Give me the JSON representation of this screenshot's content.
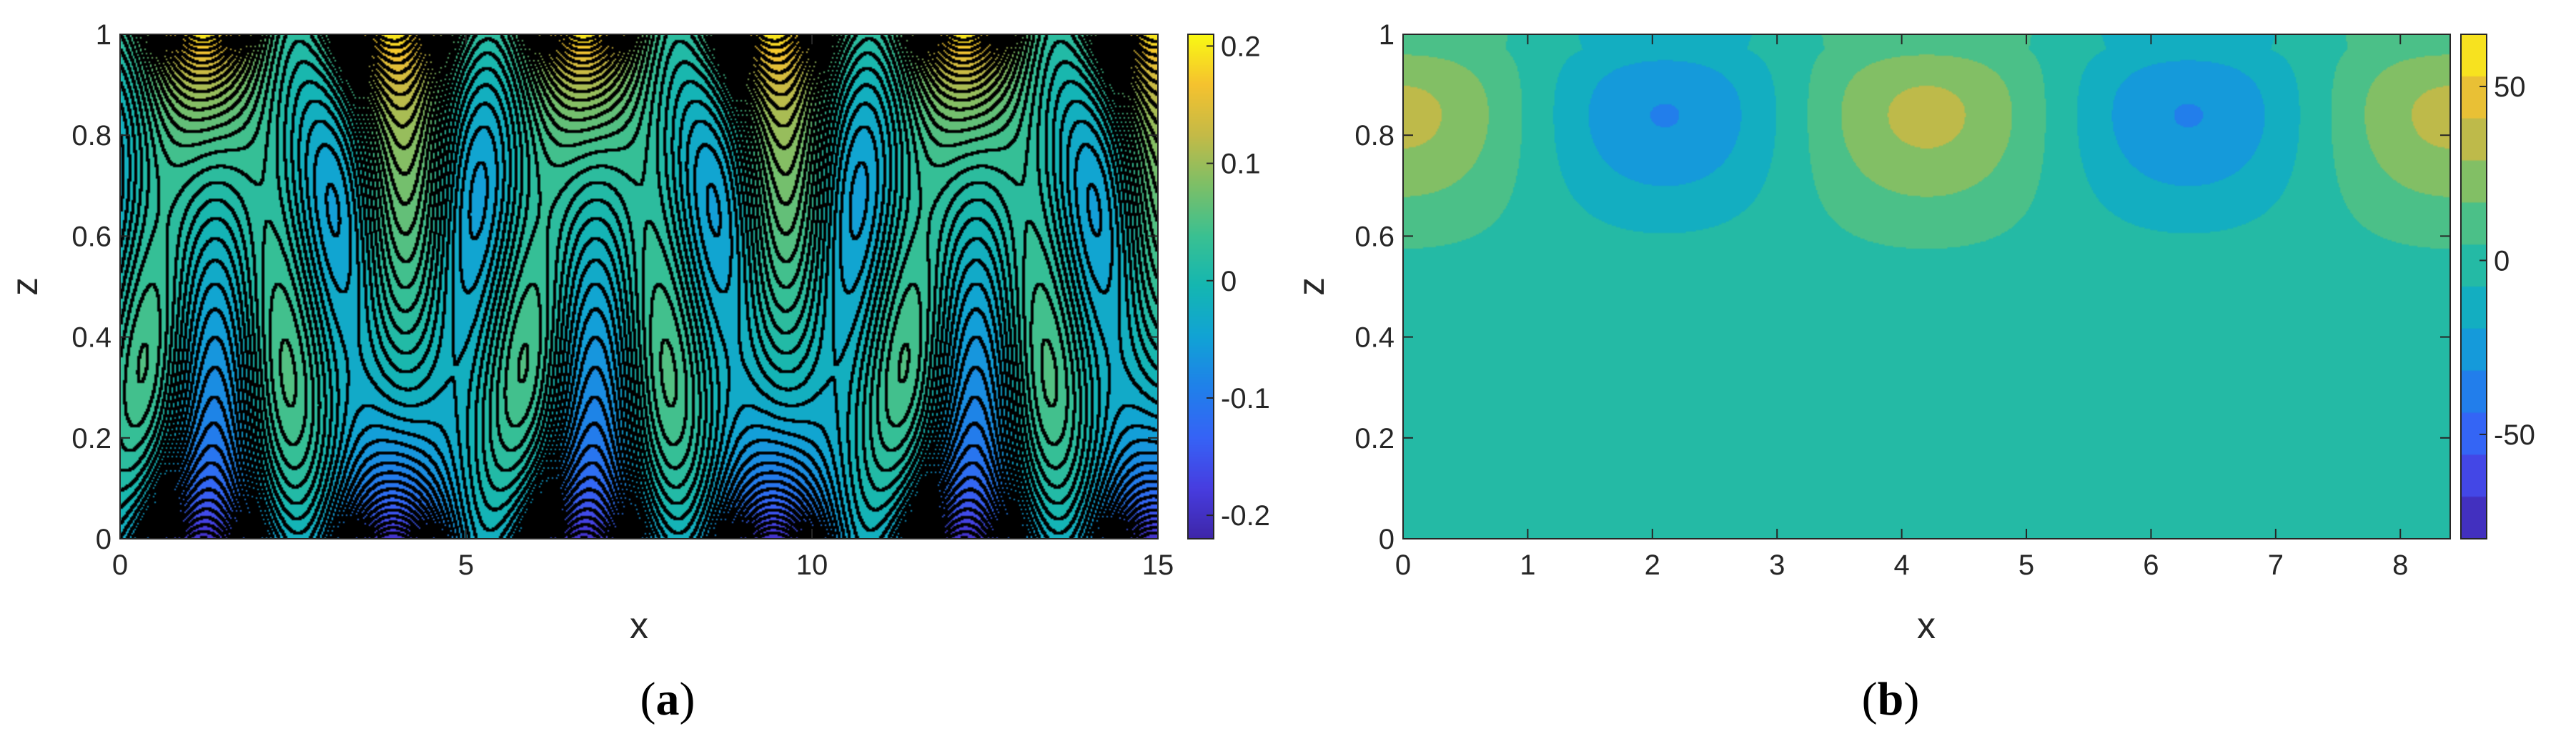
{
  "chart_data": [
    {
      "type": "heatmap",
      "subtype": "filled-contour-with-contour-lines",
      "caption": "(a)",
      "xlabel": "x",
      "ylabel": "z",
      "xlim": [
        0,
        15
      ],
      "ylim": [
        0,
        1
      ],
      "xticks": [
        0,
        5,
        10,
        15
      ],
      "yticks": [
        0,
        0.2,
        0.4,
        0.6,
        0.8,
        1
      ],
      "xtick_labels": [
        "0",
        "5",
        "10",
        "15"
      ],
      "ytick_labels": [
        "0",
        "0.2",
        "0.4",
        "0.6",
        "0.8",
        "1"
      ],
      "colorbar": {
        "range": [
          -0.22,
          0.21
        ],
        "ticks": [
          -0.2,
          -0.1,
          0,
          0.1,
          0.2
        ],
        "tick_labels": [
          "-0.2",
          "-0.1",
          "0",
          "0.1",
          "0.2"
        ]
      },
      "colormap": "parula",
      "contour_lines": true,
      "field_description": {
        "max_value_near_top": 0.21,
        "min_value_near_bottom": -0.22,
        "top_maxima_x": [
          1.3,
          4.0,
          6.8,
          9.6,
          12.3
        ],
        "bottom_minima_x": [
          1.1,
          4.0,
          6.6,
          9.5,
          12.3
        ],
        "green_columns_x": [
          2.7,
          8.2,
          13.6
        ],
        "cyan_columns_x": [
          0.1,
          5.5,
          11.0
        ]
      }
    },
    {
      "type": "heatmap",
      "subtype": "filled-contour",
      "caption": "(b)",
      "xlabel": "x",
      "ylabel": "z",
      "xlim": [
        0,
        8.4
      ],
      "ylim": [
        0,
        1
      ],
      "xticks": [
        0,
        1,
        2,
        3,
        4,
        5,
        6,
        7,
        8
      ],
      "yticks": [
        0,
        0.2,
        0.4,
        0.6,
        0.8,
        1
      ],
      "xtick_labels": [
        "0",
        "1",
        "2",
        "3",
        "4",
        "5",
        "6",
        "7",
        "8"
      ],
      "ytick_labels": [
        "0",
        "0.2",
        "0.4",
        "0.6",
        "0.8",
        "1"
      ],
      "colorbar": {
        "range": [
          -80,
          65
        ],
        "ticks": [
          -50,
          0,
          50
        ],
        "tick_labels": [
          "-50",
          "0",
          "50"
        ]
      },
      "colormap": "parula",
      "contour_lines": false,
      "field_description": {
        "max_value": 65,
        "min_value": -80,
        "maxima_center": [
          [
            0.05,
            0.88
          ],
          [
            4.25,
            0.88
          ],
          [
            8.4,
            0.88
          ]
        ],
        "minima_center": [
          [
            2.15,
            0.88
          ],
          [
            6.35,
            0.88
          ]
        ],
        "decay_depth": 0.5
      }
    }
  ]
}
